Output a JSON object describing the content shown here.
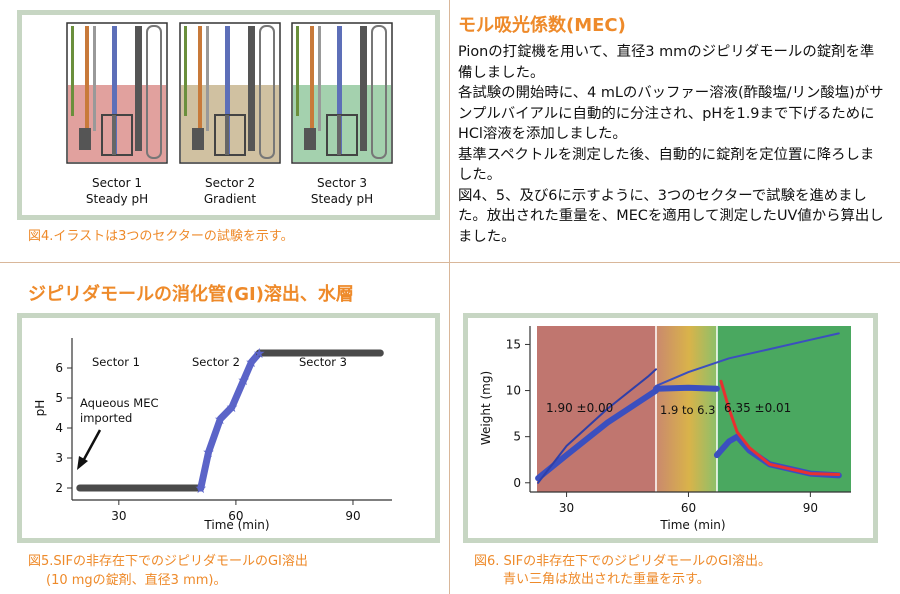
{
  "fig4": {
    "caption": "図4.イラストは3つのセクターの試験を示す。",
    "sectors": [
      {
        "name": "Sector 1",
        "desc": "Steady pH",
        "color": "#d98a86"
      },
      {
        "name": "Sector 2",
        "desc": "Gradient",
        "color": "#c4b28a"
      },
      {
        "name": "Sector 3",
        "desc": "Steady pH",
        "color": "#8dc59a"
      }
    ]
  },
  "mec": {
    "title": "モル吸光係数(MEC)",
    "paragraphs": [
      "Pionの打錠機を用いて、直径3 mmのジピリダモールの錠剤を準備しました。",
      "各試験の開始時に、4 mLのバッファー溶液(酢酸塩/リン酸塩)がサンプルバイアルに自動的に分注され、pHを1.9まで下げるためにHCl溶液を添加しました。",
      "基準スペクトルを測定した後、自動的に錠剤を定位置に降ろしました。",
      "図4、5、及び6に示すように、3つのセクターで試験を進めました。放出された重量を、MECを適用して測定したUV値から算出しました。"
    ]
  },
  "gi": {
    "title": "ジピリダモールの消化管(GI)溶出、水層"
  },
  "fig5": {
    "caption_line1": "図5.SIFの非存在下でのジピリダモールのGI溶出",
    "caption_line2": "(10 mgの錠剤、直径3 mm)。"
  },
  "fig6": {
    "caption_line1": "図6. SIFの非存在下でのジピリダモールのGI溶出。",
    "caption_line2": "青い三角は放出された重量を示す。"
  },
  "chart_data": [
    {
      "type": "line",
      "xlabel": "Time (min)",
      "ylabel": "pH",
      "xlim": [
        18,
        100
      ],
      "ylim": [
        1.6,
        7.0
      ],
      "xticks": [
        30,
        60,
        90
      ],
      "yticks": [
        2,
        3,
        4,
        5,
        6
      ],
      "annotations": [
        "Sector 1",
        "Sector 2",
        "Sector 3",
        "Aqueous MEC",
        "imported"
      ],
      "series": [
        {
          "color": "#4a4a4a",
          "x": [
            20,
            30,
            40,
            51
          ],
          "y": [
            2,
            2,
            2,
            2
          ]
        },
        {
          "color": "#5b64c8",
          "x": [
            51,
            53,
            56,
            59,
            62,
            64,
            66
          ],
          "y": [
            2,
            3.2,
            4.3,
            4.7,
            5.6,
            6.2,
            6.5
          ]
        },
        {
          "color": "#4a4a4a",
          "x": [
            66,
            75,
            85,
            97
          ],
          "y": [
            6.5,
            6.5,
            6.5,
            6.5
          ]
        }
      ]
    },
    {
      "type": "line",
      "xlabel": "Time (min)",
      "ylabel": "Weight (mg)",
      "xlim": [
        21,
        100
      ],
      "ylim": [
        -1,
        17
      ],
      "xticks": [
        30,
        60,
        90
      ],
      "yticks": [
        0,
        5,
        10,
        15
      ],
      "annotations": [
        "1.90 ±0.00",
        "1.9 to 6.3",
        "6.35 ±0.01"
      ],
      "series": [
        {
          "color": "#3b4fbf",
          "x": [
            23,
            30,
            40,
            52
          ],
          "y": [
            0.5,
            3,
            6.5,
            10
          ]
        },
        {
          "color": "#3b4fbf",
          "x": [
            52,
            60,
            67
          ],
          "y": [
            10.2,
            10.3,
            10.2
          ]
        },
        {
          "color": "#3b4fbf",
          "x": [
            67,
            70,
            72,
            75,
            80,
            90,
            97
          ],
          "y": [
            3,
            4.5,
            5,
            3.5,
            2,
            1,
            0.8
          ]
        },
        {
          "color": "#3b4fbf",
          "x": [
            52,
            60,
            70,
            80,
            90,
            97
          ],
          "y": [
            10.5,
            12,
            13.5,
            14.5,
            15.5,
            16.2
          ]
        },
        {
          "color": "#e83030",
          "x": [
            68,
            70,
            72,
            75,
            80,
            90,
            97
          ],
          "y": [
            11,
            8,
            5.5,
            3.8,
            2,
            1,
            0.9
          ]
        },
        {
          "color": "#2f3fa8",
          "x": [
            23,
            30,
            40,
            50,
            52
          ],
          "y": [
            0,
            4,
            8,
            11.5,
            12.3
          ]
        }
      ]
    }
  ]
}
